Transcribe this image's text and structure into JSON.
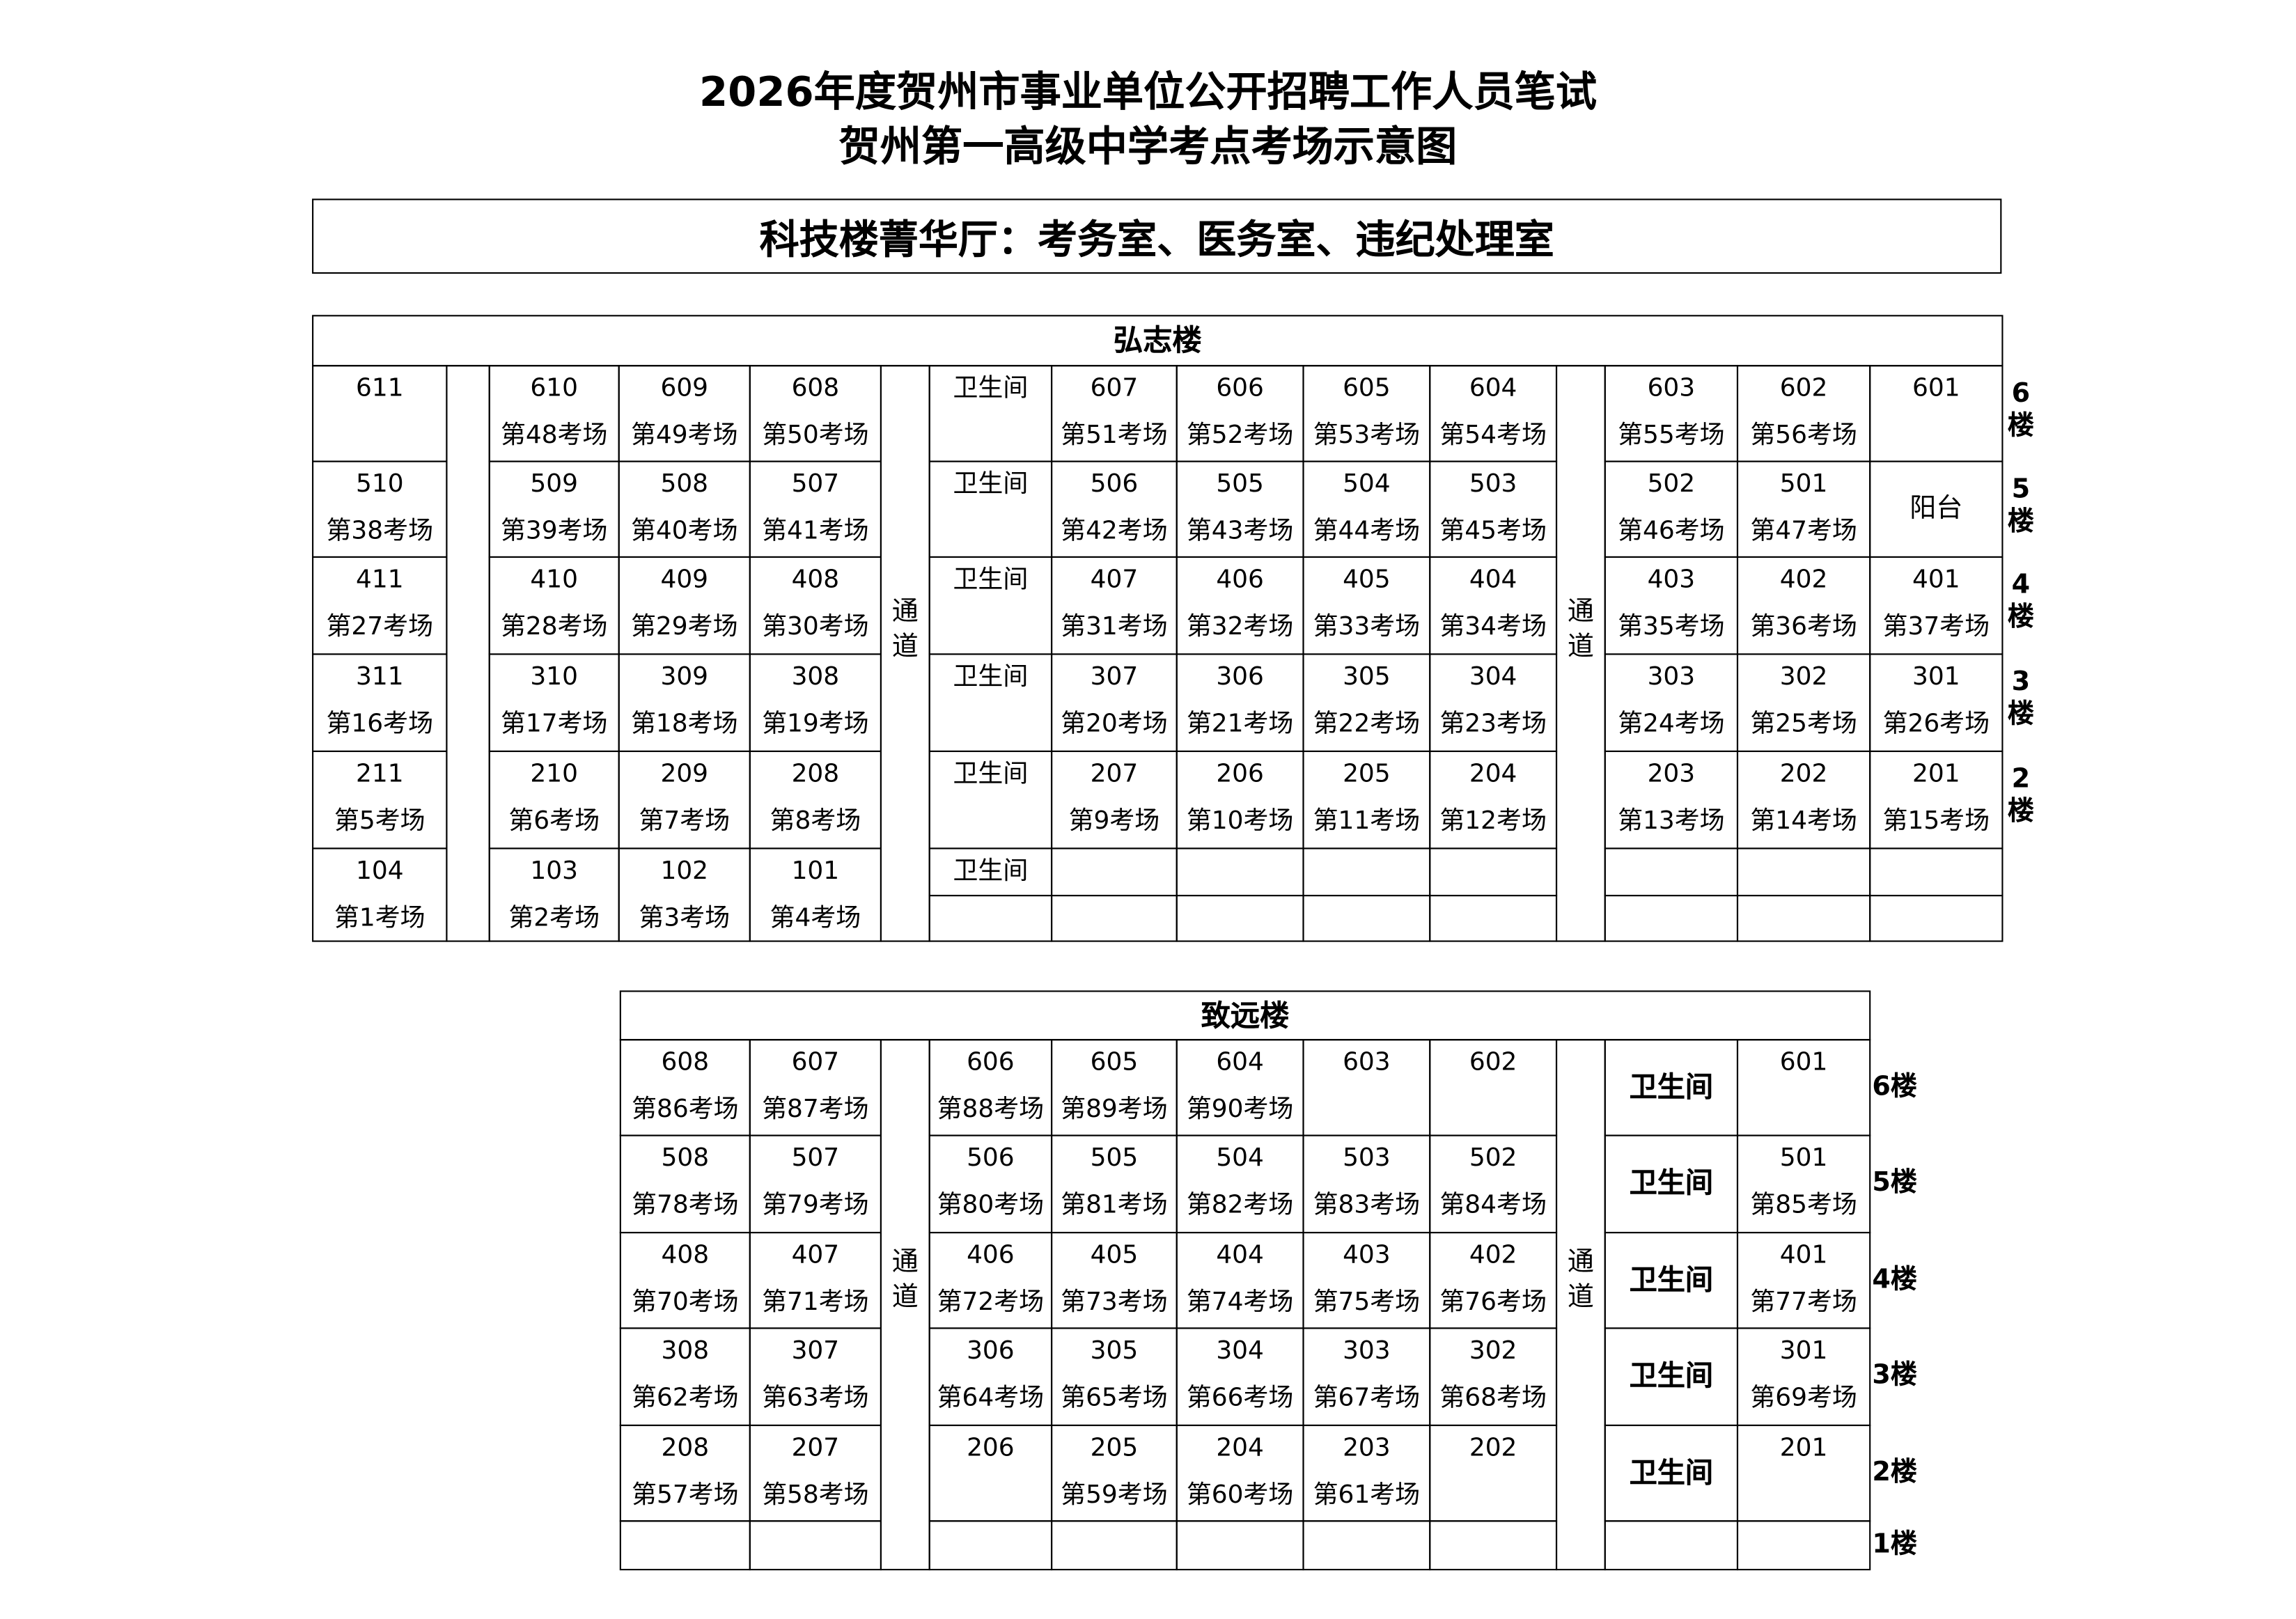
{
  "header": {
    "title_line1": "2026年度贺州市事业单位公开招聘工作人员笔试",
    "title_line2": "贺州第一高级中学考点考场示意图",
    "notice": "科技楼菁华厅：考务室、医务室、违纪处理室"
  },
  "upper": {
    "name": "弘志楼",
    "passage": "通道",
    "floors": [
      {
        "label": "6楼",
        "digit": "6",
        "lou": "楼",
        "cells": [
          {
            "room": "611"
          },
          {
            "room": "610",
            "exam": "第48考场"
          },
          {
            "room": "609",
            "exam": "第49考场"
          },
          {
            "room": "608",
            "exam": "第50考场"
          },
          {
            "room": "卫生间"
          },
          {
            "room": "607",
            "exam": "第51考场"
          },
          {
            "room": "606",
            "exam": "第52考场"
          },
          {
            "room": "605",
            "exam": "第53考场"
          },
          {
            "room": "604",
            "exam": "第54考场"
          },
          {
            "room": "603",
            "exam": "第55考场"
          },
          {
            "room": "602",
            "exam": "第56考场"
          },
          {
            "room": "601"
          }
        ]
      },
      {
        "label": "5楼",
        "digit": "5",
        "lou": "楼",
        "cells": [
          {
            "room": "510",
            "exam": "第38考场"
          },
          {
            "room": "509",
            "exam": "第39考场"
          },
          {
            "room": "508",
            "exam": "第40考场"
          },
          {
            "room": "507",
            "exam": "第41考场"
          },
          {
            "room": "卫生间"
          },
          {
            "room": "506",
            "exam": "第42考场"
          },
          {
            "room": "505",
            "exam": "第43考场"
          },
          {
            "room": "504",
            "exam": "第44考场"
          },
          {
            "room": "503",
            "exam": "第45考场"
          },
          {
            "room": "502",
            "exam": "第46考场"
          },
          {
            "room": "501",
            "exam": "第47考场"
          },
          {
            "note": "阳台"
          }
        ]
      },
      {
        "label": "4楼",
        "digit": "4",
        "lou": "楼",
        "cells": [
          {
            "room": "411",
            "exam": "第27考场"
          },
          {
            "room": "410",
            "exam": "第28考场"
          },
          {
            "room": "409",
            "exam": "第29考场"
          },
          {
            "room": "408",
            "exam": "第30考场"
          },
          {
            "room": "卫生间"
          },
          {
            "room": "407",
            "exam": "第31考场"
          },
          {
            "room": "406",
            "exam": "第32考场"
          },
          {
            "room": "405",
            "exam": "第33考场"
          },
          {
            "room": "404",
            "exam": "第34考场"
          },
          {
            "room": "403",
            "exam": "第35考场"
          },
          {
            "room": "402",
            "exam": "第36考场"
          },
          {
            "room": "401",
            "exam": "第37考场"
          }
        ]
      },
      {
        "label": "3楼",
        "digit": "3",
        "lou": "楼",
        "cells": [
          {
            "room": "311",
            "exam": "第16考场"
          },
          {
            "room": "310",
            "exam": "第17考场"
          },
          {
            "room": "309",
            "exam": "第18考场"
          },
          {
            "room": "308",
            "exam": "第19考场"
          },
          {
            "room": "卫生间"
          },
          {
            "room": "307",
            "exam": "第20考场"
          },
          {
            "room": "306",
            "exam": "第21考场"
          },
          {
            "room": "305",
            "exam": "第22考场"
          },
          {
            "room": "304",
            "exam": "第23考场"
          },
          {
            "room": "303",
            "exam": "第24考场"
          },
          {
            "room": "302",
            "exam": "第25考场"
          },
          {
            "room": "301",
            "exam": "第26考场"
          }
        ]
      },
      {
        "label": "2楼",
        "digit": "2",
        "lou": "楼",
        "cells": [
          {
            "room": "211",
            "exam": "第5考场"
          },
          {
            "room": "210",
            "exam": "第6考场"
          },
          {
            "room": "209",
            "exam": "第7考场"
          },
          {
            "room": "208",
            "exam": "第8考场"
          },
          {
            "room": "卫生间"
          },
          {
            "room": "207",
            "exam": "第9考场"
          },
          {
            "room": "206",
            "exam": "第10考场"
          },
          {
            "room": "205",
            "exam": "第11考场"
          },
          {
            "room": "204",
            "exam": "第12考场"
          },
          {
            "room": "203",
            "exam": "第13考场"
          },
          {
            "room": "202",
            "exam": "第14考场"
          },
          {
            "room": "201",
            "exam": "第15考场"
          }
        ]
      },
      {
        "label": "",
        "cells": [
          {
            "room": "104",
            "exam": "第1考场"
          },
          {
            "room": "103",
            "exam": "第2考场"
          },
          {
            "room": "102",
            "exam": "第3考场"
          },
          {
            "room": "101",
            "exam": "第4考场"
          },
          {
            "room": "卫生间"
          },
          {},
          {},
          {},
          {},
          {},
          {},
          {}
        ]
      }
    ]
  },
  "lower": {
    "name": "致远楼",
    "passage": "通道",
    "floors": [
      {
        "label": "6楼",
        "cells": [
          {
            "room": "608",
            "exam": "第86考场"
          },
          {
            "room": "607",
            "exam": "第87考场"
          },
          {
            "room": "606",
            "exam": "第88考场"
          },
          {
            "room": "605",
            "exam": "第89考场"
          },
          {
            "room": "604",
            "exam": "第90考场"
          },
          {
            "room": "603"
          },
          {
            "room": "602"
          },
          {
            "note": "卫生间"
          },
          {
            "room": "601"
          }
        ]
      },
      {
        "label": "5楼",
        "cells": [
          {
            "room": "508",
            "exam": "第78考场"
          },
          {
            "room": "507",
            "exam": "第79考场"
          },
          {
            "room": "506",
            "exam": "第80考场"
          },
          {
            "room": "505",
            "exam": "第81考场"
          },
          {
            "room": "504",
            "exam": "第82考场"
          },
          {
            "room": "503",
            "exam": "第83考场"
          },
          {
            "room": "502",
            "exam": "第84考场"
          },
          {
            "note": "卫生间"
          },
          {
            "room": "501",
            "exam": "第85考场"
          }
        ]
      },
      {
        "label": "4楼",
        "cells": [
          {
            "room": "408",
            "exam": "第70考场"
          },
          {
            "room": "407",
            "exam": "第71考场"
          },
          {
            "room": "406",
            "exam": "第72考场"
          },
          {
            "room": "405",
            "exam": "第73考场"
          },
          {
            "room": "404",
            "exam": "第74考场"
          },
          {
            "room": "403",
            "exam": "第75考场"
          },
          {
            "room": "402",
            "exam": "第76考场"
          },
          {
            "note": "卫生间"
          },
          {
            "room": "401",
            "exam": "第77考场"
          }
        ]
      },
      {
        "label": "3楼",
        "cells": [
          {
            "room": "308",
            "exam": "第62考场"
          },
          {
            "room": "307",
            "exam": "第63考场"
          },
          {
            "room": "306",
            "exam": "第64考场"
          },
          {
            "room": "305",
            "exam": "第65考场"
          },
          {
            "room": "304",
            "exam": "第66考场"
          },
          {
            "room": "303",
            "exam": "第67考场"
          },
          {
            "room": "302",
            "exam": "第68考场"
          },
          {
            "note": "卫生间"
          },
          {
            "room": "301",
            "exam": "第69考场"
          }
        ]
      },
      {
        "label": "2楼",
        "cells": [
          {
            "room": "208",
            "exam": "第57考场"
          },
          {
            "room": "207",
            "exam": "第58考场"
          },
          {
            "room": "206"
          },
          {
            "room": "205",
            "exam": "第59考场"
          },
          {
            "room": "204",
            "exam": "第60考场"
          },
          {
            "room": "203",
            "exam": "第61考场"
          },
          {
            "room": "202"
          },
          {
            "note": "卫生间"
          },
          {
            "room": "201"
          }
        ]
      },
      {
        "label": "1楼",
        "cells": [
          {},
          {},
          {},
          {},
          {},
          {},
          {},
          {},
          {}
        ]
      }
    ]
  }
}
